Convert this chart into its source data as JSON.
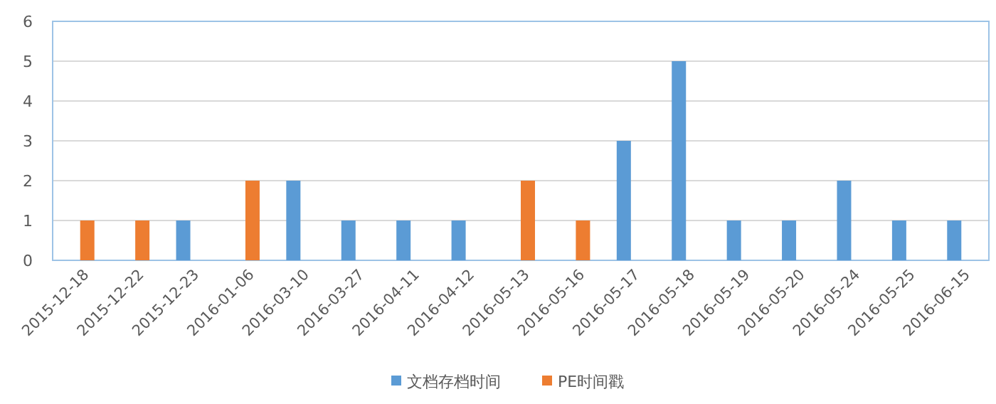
{
  "chart_data": {
    "type": "bar",
    "categories": [
      "2015-12-18",
      "2015-12-22",
      "2015-12-23",
      "2016-01-06",
      "2016-03-10",
      "2016-03-27",
      "2016-04-11",
      "2016-04-12",
      "2016-05-13",
      "2016-05-16",
      "2016-05-17",
      "2016-05-18",
      "2016-05-19",
      "2016-05-20",
      "2016-05-24",
      "2016-05-25",
      "2016-06-15"
    ],
    "series": [
      {
        "name": "文档存档时间",
        "color": "#5b9bd5",
        "values": [
          null,
          null,
          1,
          null,
          2,
          1,
          1,
          1,
          null,
          null,
          3,
          5,
          1,
          1,
          2,
          1,
          1
        ]
      },
      {
        "name": "PE时间戳",
        "color": "#ed7d31",
        "values": [
          1,
          1,
          null,
          2,
          null,
          null,
          null,
          null,
          2,
          1,
          null,
          null,
          null,
          null,
          null,
          null,
          null
        ]
      }
    ],
    "ylim": [
      0,
      6
    ],
    "yticks": [
      0,
      1,
      2,
      3,
      4,
      5,
      6
    ],
    "grid": "y",
    "legend": "bottom"
  }
}
